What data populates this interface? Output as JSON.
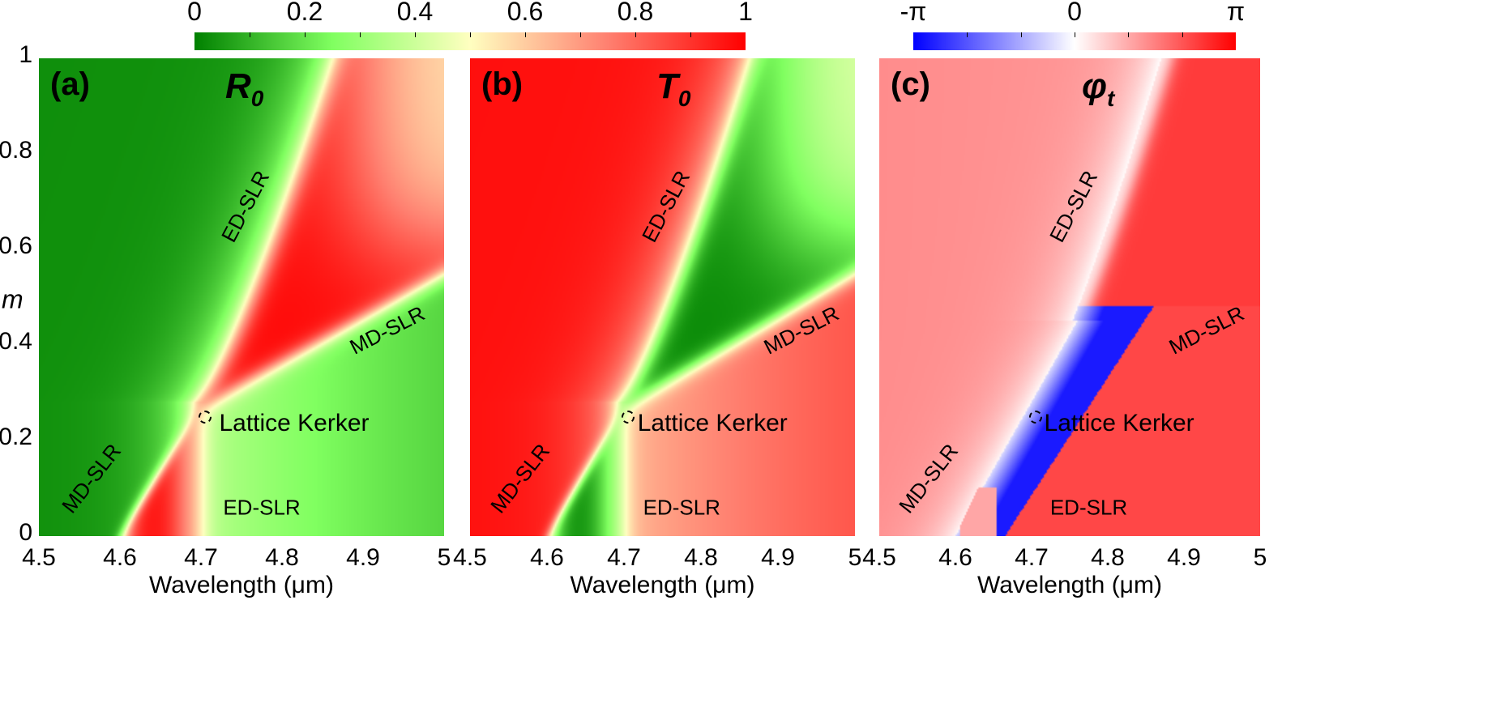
{
  "chart_data": [
    {
      "type": "heatmap",
      "panel_label": "(a)",
      "title_symbol": "R",
      "title_subscript": "0",
      "xlabel": "Wavelength (μm)",
      "ylabel": "m",
      "xlim": [
        4.5,
        5
      ],
      "ylim": [
        0,
        1
      ],
      "xticks": [
        "4.5",
        "4.6",
        "4.7",
        "4.8",
        "4.9",
        "5"
      ],
      "yticks": [
        "0",
        "0.2",
        "0.4",
        "0.6",
        "0.8",
        "1"
      ],
      "colorbar": {
        "range": [
          0,
          1
        ],
        "labels": [
          "0",
          "0.2",
          "0.4",
          "0.6",
          "0.8",
          "1"
        ],
        "colors": [
          "#008000",
          "#80ff60",
          "#ffffc0",
          "#ff8070",
          "#ff0000"
        ]
      },
      "annotations": [
        "ED-SLR",
        "MD-SLR",
        "Lattice Kerker",
        "MD-SLR",
        "ED-SLR"
      ],
      "lattice_kerker_point": [
        4.705,
        0.25
      ]
    },
    {
      "type": "heatmap",
      "panel_label": "(b)",
      "title_symbol": "T",
      "title_subscript": "0",
      "xlabel": "Wavelength (μm)",
      "xlim": [
        4.5,
        5
      ],
      "ylim": [
        0,
        1
      ],
      "xticks": [
        "4.5",
        "4.6",
        "4.7",
        "4.8",
        "4.9",
        "5"
      ],
      "annotations": [
        "ED-SLR",
        "MD-SLR",
        "Lattice Kerker",
        "MD-SLR",
        "ED-SLR"
      ],
      "lattice_kerker_point": [
        4.705,
        0.25
      ]
    },
    {
      "type": "heatmap",
      "panel_label": "(c)",
      "title_symbol": "φ",
      "title_subscript": "t",
      "xlabel": "Wavelength (μm)",
      "xlim": [
        4.5,
        5
      ],
      "ylim": [
        0,
        1
      ],
      "xticks": [
        "4.5",
        "4.6",
        "4.7",
        "4.8",
        "4.9",
        "5"
      ],
      "colorbar": {
        "range": [
          -3.1416,
          3.1416
        ],
        "labels": [
          "-π",
          "0",
          "π"
        ],
        "colors": [
          "#0000ff",
          "#ffffff",
          "#ff0000"
        ]
      },
      "annotations": [
        "ED-SLR",
        "MD-SLR",
        "Lattice Kerker",
        "MD-SLR",
        "ED-SLR"
      ],
      "lattice_kerker_point": [
        4.705,
        0.25
      ]
    }
  ],
  "resonance_curves": {
    "ed_slr": [
      [
        4.7,
        0.0
      ],
      [
        4.7,
        0.28
      ],
      [
        4.754,
        0.45
      ],
      [
        4.788,
        0.6
      ],
      [
        4.87,
        1.0
      ]
    ],
    "md_slr": [
      [
        4.6,
        0.0
      ],
      [
        4.7,
        0.27
      ],
      [
        5.0,
        0.55
      ]
    ]
  }
}
